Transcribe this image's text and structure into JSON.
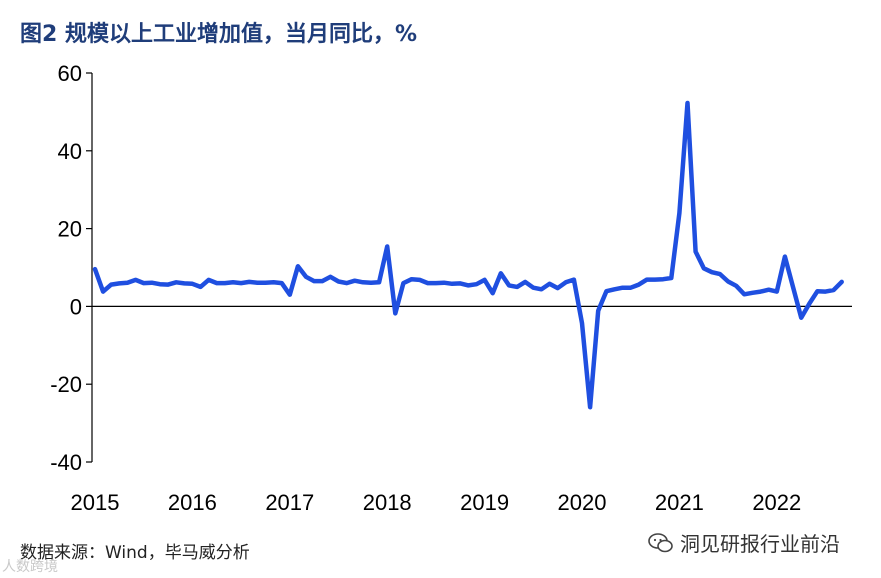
{
  "title": "图2  规模以上工业增加值，当月同比，%",
  "source": "数据来源：Wind，毕马威分析",
  "watermark": "洞见研报行业前沿",
  "corner_mark": "人数跨境",
  "chart_data": {
    "type": "line",
    "title": "图2  规模以上工业增加值，当月同比，%",
    "xlabel": "",
    "ylabel": "",
    "x_ticks": [
      "2015",
      "2016",
      "2017",
      "2018",
      "2019",
      "2020",
      "2021",
      "2022"
    ],
    "y_ticks": [
      "60",
      "40",
      "20",
      "0",
      "-20",
      "-40"
    ],
    "ylim": [
      -40,
      60
    ],
    "xlim": [
      "2015-01",
      "2022-09"
    ],
    "grid": false,
    "color": "#1f4fe0",
    "series": [
      {
        "points": [
          [
            "2015-01",
            9.6
          ],
          [
            "2015-02",
            3.8
          ],
          [
            "2015-03",
            5.6
          ],
          [
            "2015-04",
            5.9
          ],
          [
            "2015-05",
            6.1
          ],
          [
            "2015-06",
            6.8
          ],
          [
            "2015-07",
            6.0
          ],
          [
            "2015-08",
            6.1
          ],
          [
            "2015-09",
            5.7
          ],
          [
            "2015-10",
            5.6
          ],
          [
            "2015-11",
            6.2
          ],
          [
            "2015-12",
            5.9
          ],
          [
            "2016-01",
            5.8
          ],
          [
            "2016-02",
            5.0
          ],
          [
            "2016-03",
            6.8
          ],
          [
            "2016-04",
            6.0
          ],
          [
            "2016-05",
            6.0
          ],
          [
            "2016-06",
            6.2
          ],
          [
            "2016-07",
            6.0
          ],
          [
            "2016-08",
            6.3
          ],
          [
            "2016-09",
            6.1
          ],
          [
            "2016-10",
            6.1
          ],
          [
            "2016-11",
            6.2
          ],
          [
            "2016-12",
            6.0
          ],
          [
            "2017-01",
            3.0
          ],
          [
            "2017-02",
            10.3
          ],
          [
            "2017-03",
            7.6
          ],
          [
            "2017-04",
            6.5
          ],
          [
            "2017-05",
            6.5
          ],
          [
            "2017-06",
            7.6
          ],
          [
            "2017-07",
            6.4
          ],
          [
            "2017-08",
            6.0
          ],
          [
            "2017-09",
            6.6
          ],
          [
            "2017-10",
            6.2
          ],
          [
            "2017-11",
            6.1
          ],
          [
            "2017-12",
            6.2
          ],
          [
            "2018-01",
            15.4
          ],
          [
            "2018-02",
            -1.8
          ],
          [
            "2018-03",
            6.0
          ],
          [
            "2018-04",
            7.0
          ],
          [
            "2018-05",
            6.8
          ],
          [
            "2018-06",
            6.0
          ],
          [
            "2018-07",
            6.0
          ],
          [
            "2018-08",
            6.1
          ],
          [
            "2018-09",
            5.8
          ],
          [
            "2018-10",
            5.9
          ],
          [
            "2018-11",
            5.4
          ],
          [
            "2018-12",
            5.7
          ],
          [
            "2019-01",
            6.8
          ],
          [
            "2019-02",
            3.4
          ],
          [
            "2019-03",
            8.5
          ],
          [
            "2019-04",
            5.4
          ],
          [
            "2019-05",
            5.0
          ],
          [
            "2019-06",
            6.3
          ],
          [
            "2019-07",
            4.8
          ],
          [
            "2019-08",
            4.4
          ],
          [
            "2019-09",
            5.8
          ],
          [
            "2019-10",
            4.7
          ],
          [
            "2019-11",
            6.2
          ],
          [
            "2019-12",
            6.9
          ],
          [
            "2020-01",
            -4.3
          ],
          [
            "2020-02",
            -25.9
          ],
          [
            "2020-03",
            -1.1
          ],
          [
            "2020-04",
            3.9
          ],
          [
            "2020-05",
            4.4
          ],
          [
            "2020-06",
            4.8
          ],
          [
            "2020-07",
            4.8
          ],
          [
            "2020-08",
            5.6
          ],
          [
            "2020-09",
            6.9
          ],
          [
            "2020-10",
            6.9
          ],
          [
            "2020-11",
            7.0
          ],
          [
            "2020-12",
            7.3
          ],
          [
            "2021-01",
            24.0
          ],
          [
            "2021-02",
            52.3
          ],
          [
            "2021-03",
            14.1
          ],
          [
            "2021-04",
            9.8
          ],
          [
            "2021-05",
            8.8
          ],
          [
            "2021-06",
            8.3
          ],
          [
            "2021-07",
            6.4
          ],
          [
            "2021-08",
            5.3
          ],
          [
            "2021-09",
            3.1
          ],
          [
            "2021-10",
            3.5
          ],
          [
            "2021-11",
            3.8
          ],
          [
            "2021-12",
            4.3
          ],
          [
            "2022-01",
            3.8
          ],
          [
            "2022-02",
            12.8
          ],
          [
            "2022-03",
            5.0
          ],
          [
            "2022-04",
            -2.9
          ],
          [
            "2022-05",
            0.7
          ],
          [
            "2022-06",
            3.9
          ],
          [
            "2022-07",
            3.8
          ],
          [
            "2022-08",
            4.2
          ],
          [
            "2022-09",
            6.3
          ]
        ]
      }
    ]
  }
}
